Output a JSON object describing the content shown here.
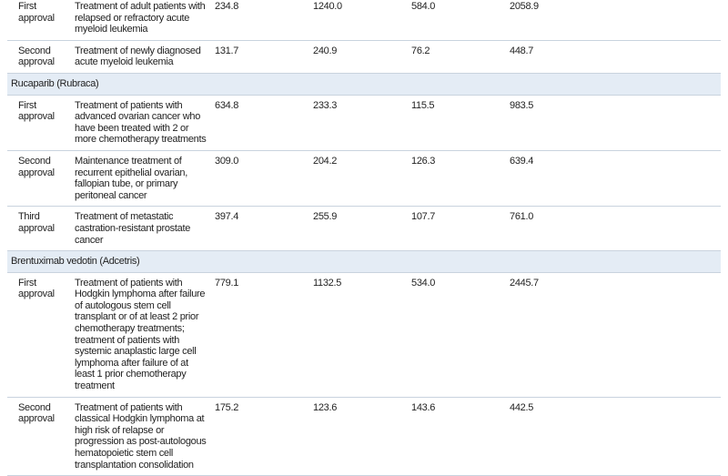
{
  "table": {
    "rows": [
      {
        "approval": "First approval",
        "indication": "Treatment of adult patients with relapsed or refractory acute myeloid leukemia",
        "values": [
          "234.8",
          "1240.0",
          "584.0",
          "2058.9"
        ]
      },
      {
        "approval": "Second approval",
        "indication": "Treatment of newly diagnosed acute myeloid leukemia",
        "values": [
          "131.7",
          "240.9",
          "76.2",
          "448.7"
        ]
      },
      {
        "group": "Rucaparib (Rubraca)"
      },
      {
        "approval": "First approval",
        "indication": "Treatment of patients with advanced ovarian cancer who have been treated with 2 or more chemotherapy treatments",
        "values": [
          "634.8",
          "233.3",
          "115.5",
          "983.5"
        ]
      },
      {
        "approval": "Second approval",
        "indication": "Maintenance treatment of recurrent epithelial ovarian, fallopian tube, or primary peritoneal cancer",
        "values": [
          "309.0",
          "204.2",
          "126.3",
          "639.4"
        ]
      },
      {
        "approval": "Third approval",
        "indication": "Treatment of metastatic castration-resistant prostate cancer",
        "values": [
          "397.4",
          "255.9",
          "107.7",
          "761.0"
        ]
      },
      {
        "group": "Brentuximab vedotin (Adcetris)"
      },
      {
        "approval": "First approval",
        "indication": "Treatment of patients with Hodgkin lymphoma after failure of autologous stem cell transplant or of at least 2 prior chemotherapy treatments; treatment of patients with systemic anaplastic large cell lymphoma after failure of at least 1 prior chemotherapy treatment",
        "values": [
          "779.1",
          "1132.5",
          "534.0",
          "2445.7"
        ]
      },
      {
        "approval": "Second approval",
        "indication": "Treatment of patients with classical Hodgkin lymphoma at high risk of relapse or progression as post-autologous hematopoietic stem cell transplantation consolidation",
        "values": [
          "175.2",
          "123.6",
          "143.6",
          "442.5"
        ]
      }
    ]
  }
}
